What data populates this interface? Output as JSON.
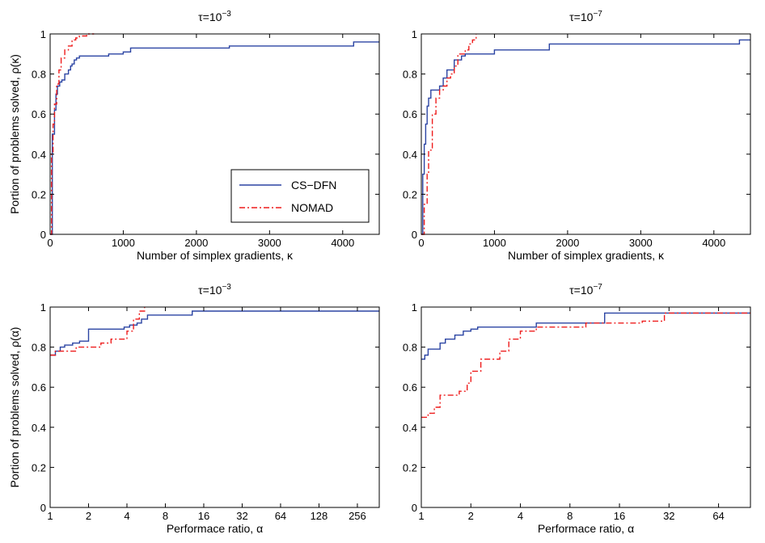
{
  "legend": {
    "entries": [
      {
        "label": "CS−DFN",
        "color": "#2b44a3",
        "style": "solid"
      },
      {
        "label": "NOMAD",
        "color": "#ee1c1c",
        "style": "dashdot"
      }
    ],
    "placement": "lower-right of top-left panel"
  },
  "chart_data": [
    {
      "type": "line",
      "title": "τ=10",
      "title_exp": "−3",
      "xlabel": "Number of simplex gradients, κ",
      "ylabel": "Portion of problems solved, ρ(κ)",
      "xlim": [
        0,
        4500
      ],
      "ylim": [
        0,
        1
      ],
      "xscale": "linear",
      "xticks": [
        0,
        1000,
        2000,
        3000,
        4000
      ],
      "xticklabels": [
        "0",
        "1000",
        "2000",
        "3000",
        "4000"
      ],
      "yticks": [
        0,
        0.2,
        0.4,
        0.6,
        0.8,
        1
      ],
      "yticklabels": [
        "0",
        "0.2",
        "0.4",
        "0.6",
        "0.8",
        "1"
      ],
      "series": [
        {
          "name": "CS−DFN",
          "x": [
            0,
            30,
            60,
            80,
            100,
            130,
            160,
            200,
            250,
            280,
            300,
            330,
            360,
            400,
            450,
            500,
            800,
            1000,
            1100,
            2400,
            2450,
            4100,
            4150,
            4500
          ],
          "y": [
            0,
            0.5,
            0.62,
            0.7,
            0.74,
            0.76,
            0.77,
            0.8,
            0.82,
            0.84,
            0.85,
            0.87,
            0.88,
            0.89,
            0.89,
            0.89,
            0.9,
            0.91,
            0.93,
            0.93,
            0.94,
            0.94,
            0.96,
            0.96
          ]
        },
        {
          "name": "NOMAD",
          "x": [
            0,
            20,
            40,
            60,
            90,
            120,
            150,
            200,
            250,
            300,
            350,
            400,
            450,
            500,
            600
          ],
          "y": [
            0,
            0.4,
            0.55,
            0.65,
            0.75,
            0.82,
            0.88,
            0.92,
            0.94,
            0.97,
            0.98,
            0.99,
            0.99,
            1.0,
            1.0
          ]
        }
      ]
    },
    {
      "type": "line",
      "title": "τ=10",
      "title_exp": "−7",
      "xlabel": "Number of simplex gradients, κ",
      "ylabel": "",
      "xlim": [
        0,
        4500
      ],
      "ylim": [
        0,
        1
      ],
      "xscale": "linear",
      "xticks": [
        0,
        1000,
        2000,
        3000,
        4000
      ],
      "xticklabels": [
        "0",
        "1000",
        "2000",
        "3000",
        "4000"
      ],
      "yticks": [
        0,
        0.2,
        0.4,
        0.6,
        0.8,
        1
      ],
      "yticklabels": [
        "0",
        "0.2",
        "0.4",
        "0.6",
        "0.8",
        "1"
      ],
      "series": [
        {
          "name": "CS−DFN",
          "x": [
            0,
            20,
            40,
            60,
            80,
            100,
            130,
            150,
            200,
            250,
            300,
            350,
            400,
            450,
            550,
            600,
            1000,
            1700,
            1750,
            4300,
            4350,
            4500
          ],
          "y": [
            0,
            0.3,
            0.45,
            0.55,
            0.64,
            0.68,
            0.72,
            0.72,
            0.72,
            0.74,
            0.78,
            0.82,
            0.82,
            0.87,
            0.89,
            0.9,
            0.92,
            0.92,
            0.95,
            0.95,
            0.97,
            0.97
          ]
        },
        {
          "name": "NOMAD",
          "x": [
            0,
            40,
            80,
            100,
            150,
            200,
            250,
            300,
            350,
            400,
            450,
            500,
            550,
            600,
            650,
            700,
            750
          ],
          "y": [
            0,
            0.15,
            0.3,
            0.42,
            0.6,
            0.68,
            0.72,
            0.74,
            0.78,
            0.8,
            0.84,
            0.9,
            0.9,
            0.92,
            0.95,
            0.97,
            1.0
          ]
        }
      ]
    },
    {
      "type": "line",
      "title": "τ=10",
      "title_exp": "−3",
      "xlabel": "Performace ratio, α",
      "ylabel": "Portion of problems solved, ρ(α)",
      "xlim": [
        1,
        380
      ],
      "ylim": [
        0,
        1
      ],
      "xscale": "log2",
      "xticks": [
        1,
        2,
        4,
        8,
        16,
        32,
        64,
        128,
        256
      ],
      "xticklabels": [
        "1",
        "2",
        "4",
        "8",
        "16",
        "32",
        "64",
        "128",
        "256"
      ],
      "yticks": [
        0,
        0.2,
        0.4,
        0.6,
        0.8,
        1
      ],
      "yticklabels": [
        "0",
        "0.2",
        "0.4",
        "0.6",
        "0.8",
        "1"
      ],
      "series": [
        {
          "name": "CS−DFN",
          "x": [
            1,
            1.1,
            1.2,
            1.3,
            1.5,
            1.7,
            1.9,
            2.0,
            2.6,
            3.0,
            3.8,
            4.2,
            4.8,
            5.2,
            5.8,
            12,
            13,
            380
          ],
          "y": [
            0.76,
            0.78,
            0.8,
            0.81,
            0.82,
            0.83,
            0.83,
            0.89,
            0.89,
            0.89,
            0.9,
            0.91,
            0.92,
            0.94,
            0.96,
            0.96,
            0.98,
            0.98
          ]
        },
        {
          "name": "NOMAD",
          "x": [
            1,
            1.1,
            1.3,
            1.6,
            2.0,
            2.5,
            3.0,
            3.5,
            4.0,
            4.5,
            5.0,
            5.5
          ],
          "y": [
            0.76,
            0.78,
            0.78,
            0.8,
            0.8,
            0.82,
            0.84,
            0.84,
            0.88,
            0.94,
            0.98,
            1.0
          ]
        }
      ]
    },
    {
      "type": "line",
      "title": "τ=10",
      "title_exp": "−7",
      "xlabel": "Performace ratio, α",
      "ylabel": "",
      "xlim": [
        1,
        100
      ],
      "ylim": [
        0,
        1
      ],
      "xscale": "log2",
      "xticks": [
        1,
        2,
        4,
        8,
        16,
        32,
        64
      ],
      "xticklabels": [
        "1",
        "2",
        "4",
        "8",
        "16",
        "32",
        "64"
      ],
      "yticks": [
        0,
        0.2,
        0.4,
        0.6,
        0.8,
        1
      ],
      "yticklabels": [
        "0",
        "0.2",
        "0.4",
        "0.6",
        "0.8",
        "1"
      ],
      "series": [
        {
          "name": "CS−DFN",
          "x": [
            1,
            1.05,
            1.1,
            1.3,
            1.4,
            1.6,
            1.8,
            2.0,
            2.2,
            2.8,
            4.0,
            5.0,
            8.0,
            12,
            13,
            100
          ],
          "y": [
            0.74,
            0.76,
            0.79,
            0.82,
            0.84,
            0.86,
            0.88,
            0.89,
            0.9,
            0.9,
            0.9,
            0.92,
            0.92,
            0.92,
            0.97,
            0.97
          ]
        },
        {
          "name": "NOMAD",
          "x": [
            1,
            1.1,
            1.2,
            1.3,
            1.5,
            1.7,
            1.9,
            2.0,
            2.3,
            2.6,
            3.0,
            3.4,
            4.0,
            5.0,
            7.0,
            10,
            13,
            17,
            22,
            28,
            30,
            100
          ],
          "y": [
            0.45,
            0.47,
            0.5,
            0.56,
            0.56,
            0.58,
            0.62,
            0.68,
            0.74,
            0.74,
            0.78,
            0.84,
            0.88,
            0.9,
            0.9,
            0.92,
            0.92,
            0.92,
            0.93,
            0.93,
            0.97,
            0.97
          ]
        }
      ]
    }
  ]
}
